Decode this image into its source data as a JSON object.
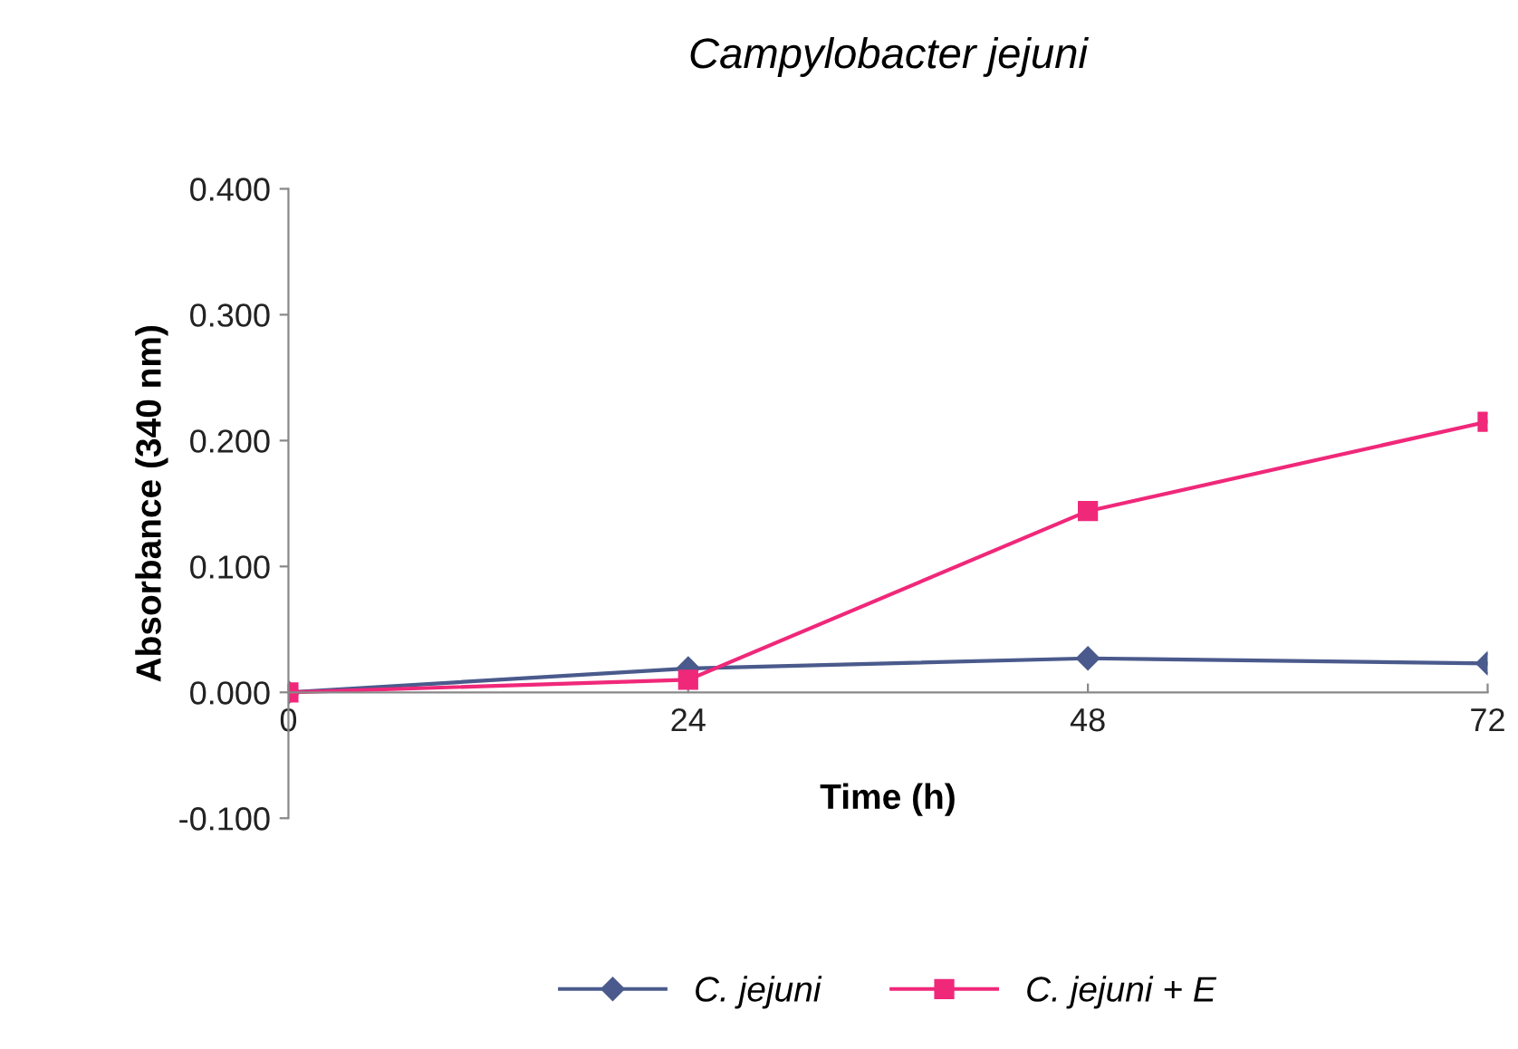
{
  "chart_data": {
    "type": "line",
    "title": "Campylobacter jejuni",
    "xlabel": "Time (h)",
    "ylabel": "Absorbance (340 nm)",
    "x": [
      0,
      24,
      48,
      72
    ],
    "series": [
      {
        "name": "C. jejuni",
        "color": "#4a5a8c",
        "marker": "diamond",
        "values": [
          0.0,
          0.019,
          0.027,
          0.023
        ]
      },
      {
        "name": "C. jejuni + E",
        "color": "#f0287a",
        "marker": "square",
        "values": [
          0.0,
          0.01,
          0.144,
          0.215
        ]
      }
    ],
    "xlim": [
      0,
      72
    ],
    "xticks": [
      0,
      24,
      48,
      72
    ],
    "ylim": [
      -0.1,
      0.4
    ],
    "yticks": [
      {
        "value": -0.1,
        "label": "-0.100"
      },
      {
        "value": 0,
        "label": "0.000"
      },
      {
        "value": 0.1,
        "label": "0.100"
      },
      {
        "value": 0.2,
        "label": "0.200"
      },
      {
        "value": 0.3,
        "label": "0.300"
      },
      {
        "value": 0.4,
        "label": "0.400"
      }
    ],
    "grid": false,
    "legend": "bottom",
    "line_style": "solid"
  }
}
